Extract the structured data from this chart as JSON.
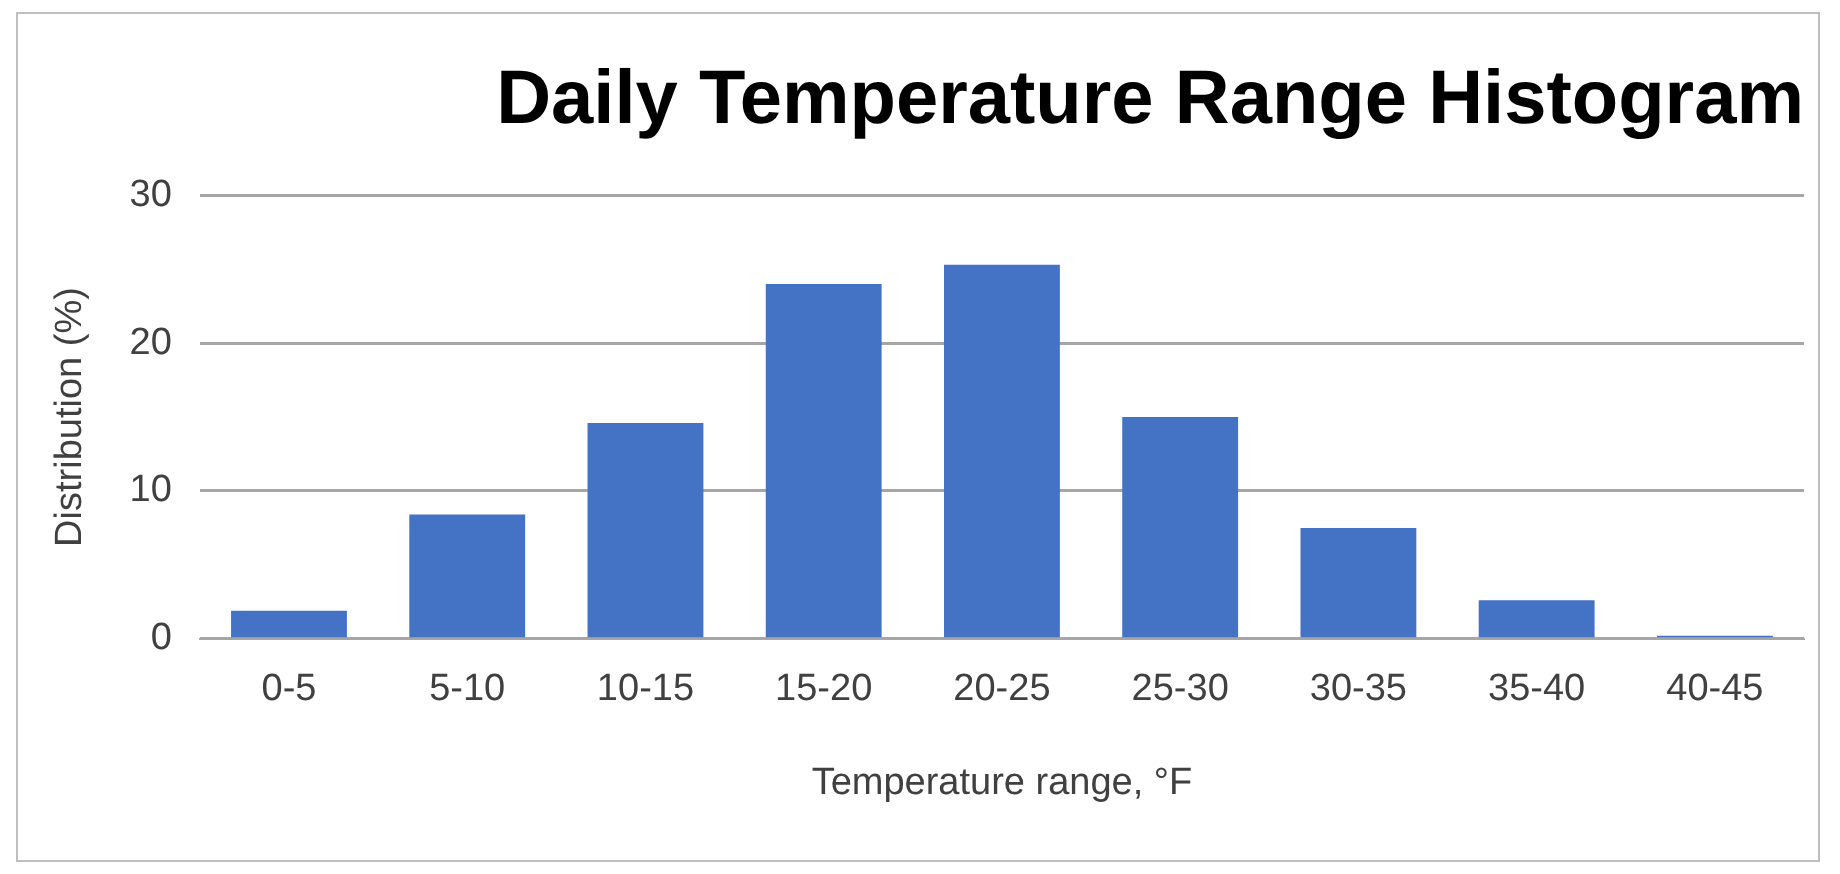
{
  "chart_data": {
    "type": "bar",
    "title": "Daily Temperature Range Histogram",
    "xlabel": "Temperature range, °F",
    "ylabel": "Distribution (%)",
    "categories": [
      "0-5",
      "5-10",
      "10-15",
      "15-20",
      "20-25",
      "25-30",
      "30-35",
      "35-40",
      "40-45"
    ],
    "values": [
      1.9,
      8.4,
      14.6,
      24.0,
      25.3,
      15.0,
      7.5,
      2.6,
      0.2
    ],
    "color": "#4472c4",
    "ylim": [
      0,
      30
    ],
    "yticks": [
      0,
      10,
      20,
      30
    ],
    "grid": "y",
    "legend": false
  }
}
